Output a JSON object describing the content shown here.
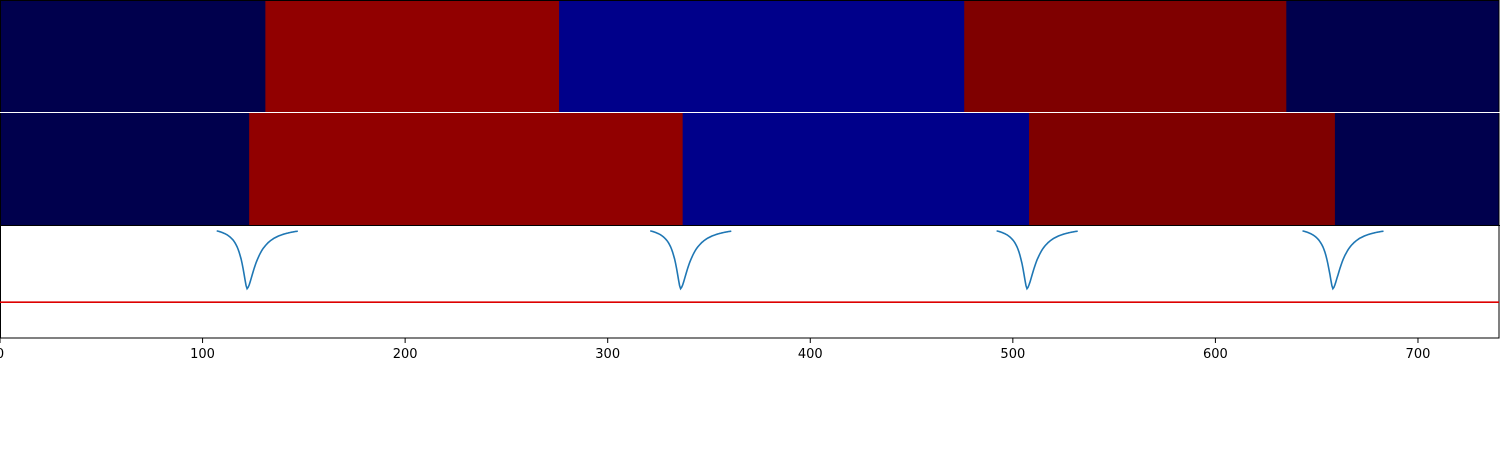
{
  "chart_data": [
    {
      "type": "heatmap",
      "panel": "segmentation-row-1",
      "segments": [
        {
          "start": 0,
          "end": 131,
          "color": "#00004d"
        },
        {
          "start": 131,
          "end": 276,
          "color": "#910000"
        },
        {
          "start": 276,
          "end": 476,
          "color": "#00008a"
        },
        {
          "start": 476,
          "end": 635,
          "color": "#7f0000"
        },
        {
          "start": 635,
          "end": 740,
          "color": "#00004d"
        }
      ]
    },
    {
      "type": "heatmap",
      "panel": "segmentation-row-2",
      "segments": [
        {
          "start": 0,
          "end": 123,
          "color": "#00004d"
        },
        {
          "start": 123,
          "end": 337,
          "color": "#910000"
        },
        {
          "start": 337,
          "end": 508,
          "color": "#00008a"
        },
        {
          "start": 508,
          "end": 659,
          "color": "#7f0000"
        },
        {
          "start": 659,
          "end": 740,
          "color": "#00004d"
        }
      ]
    },
    {
      "type": "line",
      "panel": "boundary-confidence",
      "xlim": [
        0,
        740
      ],
      "ylim": [
        0,
        1
      ],
      "xticks": [
        "0",
        "100",
        "200",
        "300",
        "400",
        "500",
        "600",
        "700"
      ],
      "xtick_values": [
        0,
        100,
        200,
        300,
        400,
        500,
        600,
        700
      ],
      "threshold": 0.32,
      "threshold_color": "#dd0000",
      "line_color": "#1f77b4",
      "dips": [
        {
          "center": 122,
          "depth": 0.56
        },
        {
          "center": 336,
          "depth": 0.56
        },
        {
          "center": 507,
          "depth": 0.56
        },
        {
          "center": 658,
          "depth": 0.56
        }
      ]
    }
  ]
}
